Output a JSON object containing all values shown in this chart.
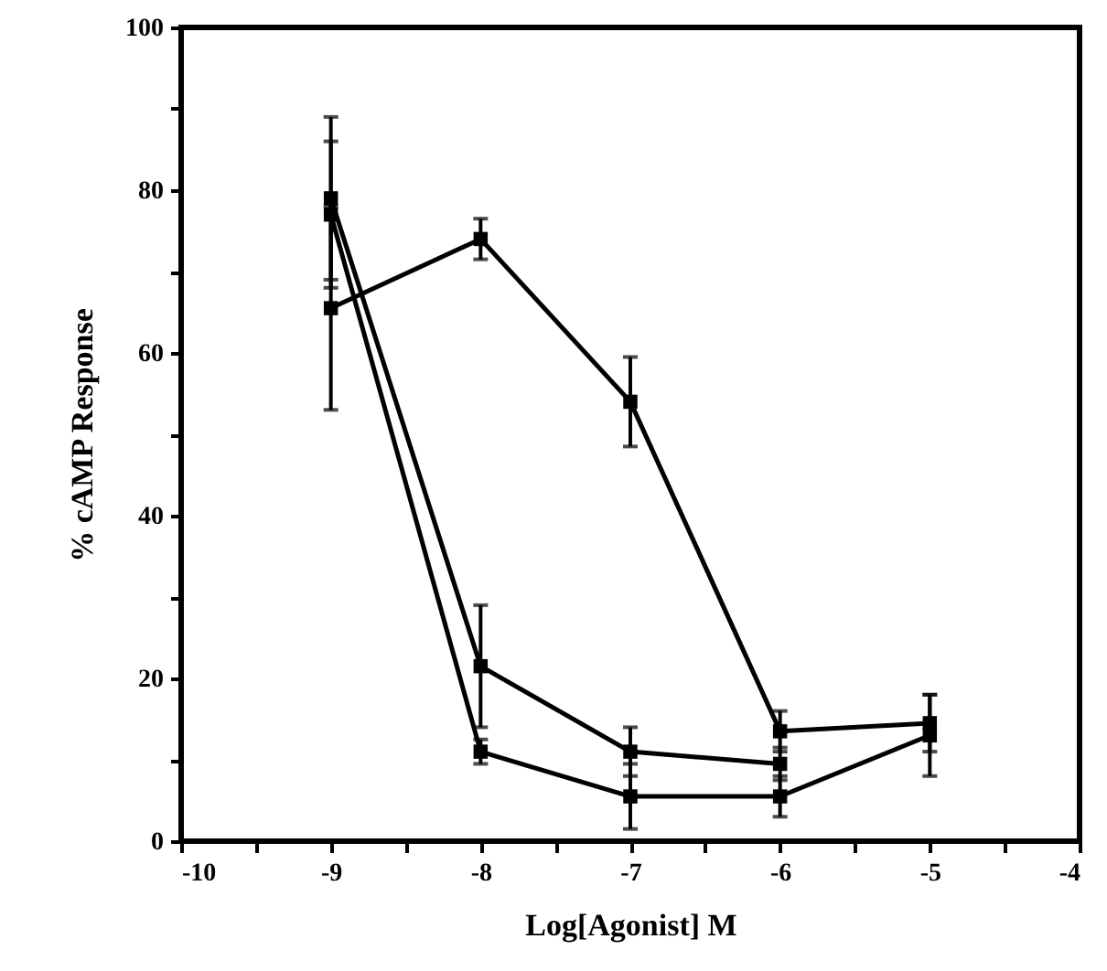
{
  "chart_data": {
    "type": "line",
    "xlabel": "Log[Agonist]  M",
    "ylabel": "% cAMP Response",
    "x": [
      -9,
      -8,
      -7,
      -6,
      -5
    ],
    "series": [
      {
        "color": "#000000",
        "values": [
          65.5,
          74,
          54,
          13.5,
          14.5
        ],
        "errors": [
          12.5,
          2.5,
          5.5,
          2.5,
          3.5
        ]
      },
      {
        "color": "#000000",
        "values": [
          79,
          21.5,
          11,
          9.5,
          null
        ],
        "errors": [
          10,
          7.5,
          3,
          2,
          null
        ]
      },
      {
        "color": "#000000",
        "values": [
          77,
          11,
          5.5,
          5.5,
          13
        ],
        "errors": [
          9,
          1.5,
          4,
          2.5,
          5
        ]
      }
    ],
    "xlim": [
      -10,
      -4
    ],
    "ylim": [
      0,
      100
    ],
    "xticks": [
      -10,
      {
        "value": -9.5,
        "label": null
      },
      -9,
      {
        "value": -8.5,
        "label": null
      },
      -8,
      {
        "value": -7.5,
        "label": null
      },
      -7,
      {
        "value": -6.5,
        "label": null
      },
      -6,
      {
        "value": -5.5,
        "label": null
      },
      -5,
      {
        "value": -4.5,
        "label": null
      },
      -4
    ],
    "yticks": [
      0,
      {
        "value": 10,
        "label": null
      },
      20,
      {
        "value": 30,
        "label": null
      },
      40,
      {
        "value": 50,
        "label": null
      },
      60,
      {
        "value": 70,
        "label": null
      },
      80,
      {
        "value": 90,
        "label": null
      },
      100
    ],
    "marker": "square",
    "grid": false
  }
}
